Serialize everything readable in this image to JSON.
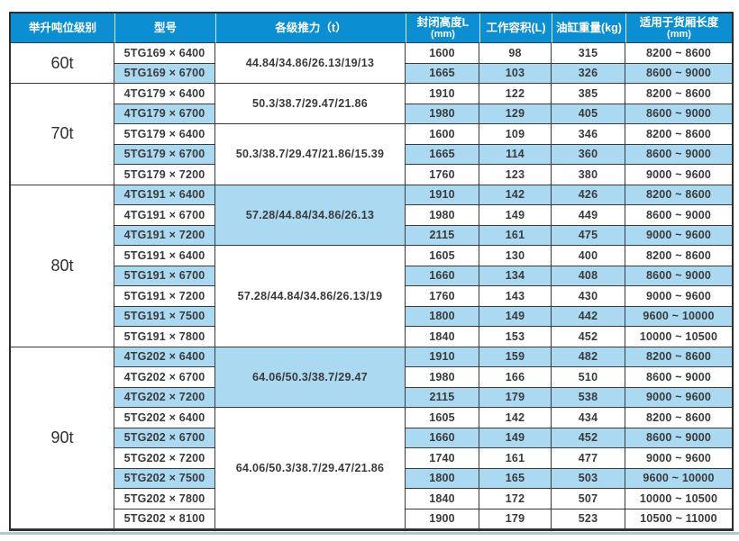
{
  "colors": {
    "header_bg": "#0c8fd2",
    "row_highlight": "#abd9f2",
    "grid_border": "#3a3a3a",
    "bottom_line": "#b2c5d0"
  },
  "table": {
    "headers": [
      {
        "label": "举升吨位级别",
        "sub": ""
      },
      {
        "label": "型号",
        "sub": ""
      },
      {
        "label": "各级推力（t）",
        "sub": ""
      },
      {
        "label": "封闭高度L",
        "sub": "(mm)"
      },
      {
        "label": "工作容积(L)",
        "sub": ""
      },
      {
        "label": "油缸重量(kg)",
        "sub": ""
      },
      {
        "label": "适用于货厢长度",
        "sub": "(mm)"
      }
    ],
    "sections": [
      {
        "tonnage": "60t",
        "groups": [
          {
            "thrust": "44.84/34.86/26.13/19/13",
            "shade": false,
            "rows": [
              {
                "model": "5TG169 × 6400",
                "closed_height": "1600",
                "volume": "98",
                "weight": "315",
                "box_length": "8200 ~ 8600",
                "shade": false
              },
              {
                "model": "5TG169 × 6700",
                "closed_height": "1665",
                "volume": "103",
                "weight": "326",
                "box_length": "8600 ~ 9000",
                "shade": true
              }
            ]
          }
        ]
      },
      {
        "tonnage": "70t",
        "groups": [
          {
            "thrust": "50.3/38.7/29.47/21.86",
            "shade": false,
            "rows": [
              {
                "model": "4TG179 × 6400",
                "closed_height": "1910",
                "volume": "122",
                "weight": "385",
                "box_length": "8200 ~ 8600",
                "shade": false
              },
              {
                "model": "4TG179 × 6700",
                "closed_height": "1980",
                "volume": "129",
                "weight": "405",
                "box_length": "8600 ~ 9000",
                "shade": true
              }
            ]
          },
          {
            "thrust": "50.3/38.7/29.47/21.86/15.39",
            "shade": false,
            "rows": [
              {
                "model": "5TG179 × 6400",
                "closed_height": "1600",
                "volume": "109",
                "weight": "346",
                "box_length": "8200 ~ 8600",
                "shade": false
              },
              {
                "model": "5TG179 × 6700",
                "closed_height": "1665",
                "volume": "114",
                "weight": "360",
                "box_length": "8600 ~ 9000",
                "shade": true
              },
              {
                "model": "5TG179 × 7200",
                "closed_height": "1760",
                "volume": "123",
                "weight": "380",
                "box_length": "9000 ~ 9600",
                "shade": false
              }
            ]
          }
        ]
      },
      {
        "tonnage": "80t",
        "groups": [
          {
            "thrust": "57.28/44.84/34.86/26.13",
            "shade": true,
            "rows": [
              {
                "model": "4TG191 × 6400",
                "closed_height": "1910",
                "volume": "142",
                "weight": "426",
                "box_length": "8200 ~ 8600",
                "shade": true
              },
              {
                "model": "4TG191 × 6700",
                "closed_height": "1980",
                "volume": "149",
                "weight": "449",
                "box_length": "8600 ~ 9000",
                "shade": false
              },
              {
                "model": "4TG191 × 7200",
                "closed_height": "2115",
                "volume": "161",
                "weight": "475",
                "box_length": "9000 ~ 9600",
                "shade": true
              }
            ]
          },
          {
            "thrust": "57.28/44.84/34.86/26.13/19",
            "shade": false,
            "rows": [
              {
                "model": "5TG191 × 6400",
                "closed_height": "1605",
                "volume": "130",
                "weight": "400",
                "box_length": "8200 ~ 8600",
                "shade": false
              },
              {
                "model": "5TG191 × 6700",
                "closed_height": "1660",
                "volume": "134",
                "weight": "408",
                "box_length": "8600 ~ 9000",
                "shade": true
              },
              {
                "model": "5TG191 × 7200",
                "closed_height": "1760",
                "volume": "143",
                "weight": "430",
                "box_length": "9000 ~ 9600",
                "shade": false
              },
              {
                "model": "5TG191 × 7500",
                "closed_height": "1800",
                "volume": "149",
                "weight": "442",
                "box_length": "9600 ~ 10000",
                "shade": true
              },
              {
                "model": "5TG191 × 7800",
                "closed_height": "1840",
                "volume": "153",
                "weight": "452",
                "box_length": "10000 ~ 10500",
                "shade": false
              }
            ]
          }
        ]
      },
      {
        "tonnage": "90t",
        "groups": [
          {
            "thrust": "64.06/50.3/38.7/29.47",
            "shade": true,
            "rows": [
              {
                "model": "4TG202 × 6400",
                "closed_height": "1910",
                "volume": "159",
                "weight": "482",
                "box_length": "8200 ~ 8600",
                "shade": true
              },
              {
                "model": "4TG202 × 6700",
                "closed_height": "1980",
                "volume": "166",
                "weight": "510",
                "box_length": "8600 ~ 9000",
                "shade": false
              },
              {
                "model": "4TG202 × 7200",
                "closed_height": "2115",
                "volume": "179",
                "weight": "538",
                "box_length": "9000 ~ 9600",
                "shade": true
              }
            ]
          },
          {
            "thrust": "64.06/50.3/38.7/29.47/21.86",
            "shade": false,
            "rows": [
              {
                "model": "5TG202 × 6400",
                "closed_height": "1605",
                "volume": "142",
                "weight": "434",
                "box_length": "8200 ~ 8600",
                "shade": false
              },
              {
                "model": "5TG202 × 6700",
                "closed_height": "1660",
                "volume": "149",
                "weight": "452",
                "box_length": "8600 ~ 9000",
                "shade": true
              },
              {
                "model": "5TG202 × 7200",
                "closed_height": "1740",
                "volume": "161",
                "weight": "477",
                "box_length": "9000 ~ 9600",
                "shade": false
              },
              {
                "model": "5TG202 × 7500",
                "closed_height": "1800",
                "volume": "165",
                "weight": "503",
                "box_length": "9600 ~ 10000",
                "shade": true
              },
              {
                "model": "5TG202 × 7800",
                "closed_height": "1840",
                "volume": "172",
                "weight": "507",
                "box_length": "10000 ~ 10500",
                "shade": false
              },
              {
                "model": "5TG202 × 8100",
                "closed_height": "1900",
                "volume": "179",
                "weight": "523",
                "box_length": "10500 ~ 11000",
                "shade": false
              }
            ]
          }
        ]
      }
    ]
  }
}
